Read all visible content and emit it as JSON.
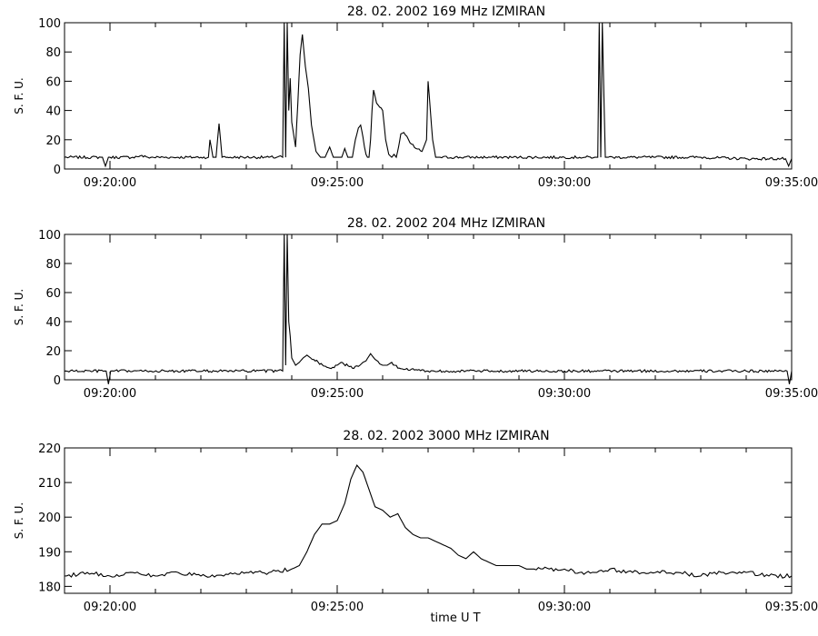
{
  "chart_data": [
    {
      "type": "line",
      "title": "28. 02. 2002   169 MHz   IZMIRAN",
      "ylabel": "S. F. U.",
      "xlabel": "",
      "xlim": [
        "09:19:00",
        "09:35:00"
      ],
      "ylim": [
        0,
        100
      ],
      "yticks": [
        0,
        20,
        40,
        60,
        80,
        100
      ],
      "xticks": [
        "09:20:00",
        "09:25:00",
        "09:30:00",
        "09:35:00"
      ],
      "grid": false,
      "baseline": 8,
      "series": [
        {
          "x": [
            "09:19:00",
            "09:19:50",
            "09:19:54",
            "09:19:58",
            "09:20:00",
            "09:20:30",
            "09:20:40",
            "09:20:50",
            "09:21:30",
            "09:22:00",
            "09:22:10",
            "09:22:12",
            "09:22:16",
            "09:22:20",
            "09:22:24",
            "09:22:28",
            "09:22:35",
            "09:23:00",
            "09:23:30",
            "09:23:40",
            "09:23:45",
            "09:23:48",
            "09:23:50",
            "09:23:52",
            "09:23:54",
            "09:23:56",
            "09:23:58",
            "09:24:00",
            "09:24:05",
            "09:24:08",
            "09:24:11",
            "09:24:14",
            "09:24:18",
            "09:24:22",
            "09:24:26",
            "09:24:32",
            "09:24:38",
            "09:24:44",
            "09:24:50",
            "09:24:55",
            "09:24:58",
            "09:25:02",
            "09:25:06",
            "09:25:10",
            "09:25:14",
            "09:25:20",
            "09:25:24",
            "09:25:28",
            "09:25:31",
            "09:25:34",
            "09:25:36",
            "09:25:38",
            "09:25:40",
            "09:25:42",
            "09:25:44",
            "09:25:46",
            "09:25:48",
            "09:25:52",
            "09:26:00",
            "09:26:04",
            "09:26:08",
            "09:26:12",
            "09:26:15",
            "09:26:18",
            "09:26:21",
            "09:26:24",
            "09:26:28",
            "09:26:36",
            "09:26:44",
            "09:26:52",
            "09:26:58",
            "09:27:00",
            "09:27:03",
            "09:27:06",
            "09:27:10",
            "09:27:16",
            "09:28:00",
            "09:29:00",
            "09:30:00",
            "09:30:20",
            "09:30:40",
            "09:30:44",
            "09:30:46",
            "09:30:48",
            "09:30:50",
            "09:30:54",
            "09:30:58",
            "09:31:10",
            "09:32:00",
            "09:33:00",
            "09:34:00",
            "09:34:52",
            "09:34:56",
            "09:35:00"
          ],
          "y": [
            8,
            8,
            2,
            8,
            8,
            8,
            9,
            8,
            8,
            8,
            8,
            20,
            8,
            8,
            31,
            8,
            8,
            8,
            8,
            8,
            9,
            8,
            100,
            8,
            100,
            40,
            62,
            32,
            15,
            45,
            78,
            92,
            70,
            55,
            30,
            12,
            8,
            8,
            15,
            8,
            8,
            8,
            8,
            14,
            8,
            8,
            20,
            28,
            30,
            22,
            15,
            10,
            8,
            8,
            20,
            40,
            54,
            45,
            40,
            20,
            10,
            8,
            10,
            8,
            15,
            24,
            25,
            18,
            14,
            12,
            20,
            60,
            40,
            20,
            8,
            8,
            8,
            8,
            8,
            8,
            8,
            8,
            100,
            8,
            100,
            8,
            8,
            8,
            8,
            8,
            7,
            7,
            2,
            7
          ]
        }
      ]
    },
    {
      "type": "line",
      "title": "28. 02. 2002   204 MHz   IZMIRAN",
      "ylabel": "S. F. U.",
      "xlabel": "",
      "xlim": [
        "09:19:00",
        "09:35:00"
      ],
      "ylim": [
        0,
        100
      ],
      "yticks": [
        0,
        20,
        40,
        60,
        80,
        100
      ],
      "xticks": [
        "09:20:00",
        "09:25:00",
        "09:30:00",
        "09:35:00"
      ],
      "grid": false,
      "baseline": 6,
      "series": [
        {
          "x": [
            "09:19:00",
            "09:19:55",
            "09:19:58",
            "09:20:01",
            "09:23:00",
            "09:23:40",
            "09:23:45",
            "09:23:48",
            "09:23:50",
            "09:23:52",
            "09:23:54",
            "09:23:56",
            "09:23:58",
            "09:24:00",
            "09:24:05",
            "09:24:10",
            "09:24:15",
            "09:24:20",
            "09:24:25",
            "09:24:35",
            "09:24:50",
            "09:25:00",
            "09:25:05",
            "09:25:20",
            "09:25:30",
            "09:25:34",
            "09:25:38",
            "09:25:44",
            "09:25:50",
            "09:26:00",
            "09:26:06",
            "09:26:12",
            "09:26:20",
            "09:27:00",
            "09:30:00",
            "09:34:00",
            "09:34:54",
            "09:34:57",
            "09:35:00"
          ],
          "y": [
            6,
            6,
            -3,
            6,
            6,
            6,
            7,
            6,
            100,
            10,
            100,
            40,
            30,
            15,
            10,
            12,
            15,
            17,
            15,
            12,
            8,
            10,
            12,
            8,
            10,
            12,
            13,
            18,
            14,
            10,
            10,
            12,
            8,
            6,
            6,
            6,
            6,
            -3,
            6
          ]
        }
      ]
    },
    {
      "type": "line",
      "title": "28. 02. 2002   3000 MHz   IZMIRAN",
      "ylabel": "S. F. U.",
      "xlabel": "time  U T",
      "xlim": [
        "09:19:00",
        "09:35:00"
      ],
      "ylim": [
        178,
        220
      ],
      "yticks": [
        180,
        190,
        200,
        210,
        220
      ],
      "xticks": [
        "09:20:00",
        "09:25:00",
        "09:30:00",
        "09:35:00"
      ],
      "grid": false,
      "series": [
        {
          "x": [
            "09:19:00",
            "09:19:30",
            "09:20:00",
            "09:20:30",
            "09:21:00",
            "09:21:30",
            "09:22:00",
            "09:22:30",
            "09:23:00",
            "09:23:30",
            "09:24:00",
            "09:24:10",
            "09:24:20",
            "09:24:30",
            "09:24:40",
            "09:24:50",
            "09:25:00",
            "09:25:10",
            "09:25:18",
            "09:25:26",
            "09:25:34",
            "09:25:42",
            "09:25:50",
            "09:26:00",
            "09:26:10",
            "09:26:20",
            "09:26:30",
            "09:26:40",
            "09:26:50",
            "09:27:00",
            "09:27:10",
            "09:27:20",
            "09:27:30",
            "09:27:40",
            "09:27:50",
            "09:28:00",
            "09:28:10",
            "09:28:20",
            "09:28:30",
            "09:28:40",
            "09:28:50",
            "09:29:00",
            "09:29:10",
            "09:29:20",
            "09:29:40",
            "09:30:00",
            "09:30:20",
            "09:30:40",
            "09:31:00",
            "09:31:30",
            "09:32:00",
            "09:32:30",
            "09:33:00",
            "09:33:30",
            "09:34:00",
            "09:34:30",
            "09:35:00"
          ],
          "y": [
            183,
            184,
            183,
            184,
            183,
            184,
            183,
            183,
            184,
            184,
            185,
            186,
            190,
            195,
            198,
            198,
            199,
            204,
            211,
            215,
            213,
            208,
            203,
            202,
            200,
            201,
            197,
            195,
            194,
            194,
            193,
            192,
            191,
            189,
            188,
            190,
            188,
            187,
            186,
            186,
            186,
            186,
            185,
            185,
            185,
            185,
            184,
            184,
            185,
            184,
            184,
            184,
            183,
            184,
            184,
            183,
            183
          ]
        }
      ]
    }
  ]
}
